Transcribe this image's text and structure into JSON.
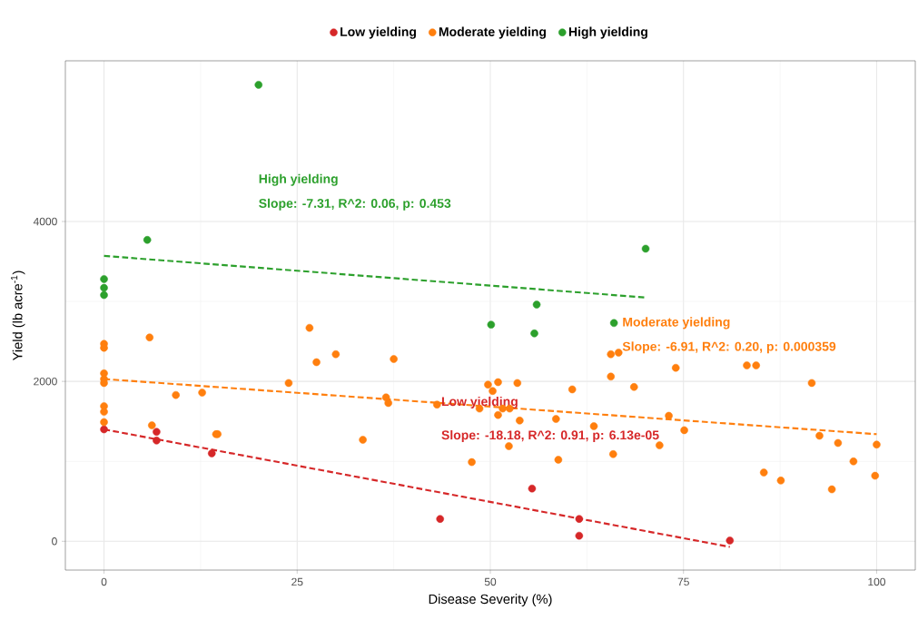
{
  "chart_data": {
    "type": "scatter",
    "xlabel": "Disease Severity (%)",
    "ylabel": "Yield (lb acre$^{-1}$)",
    "xlim": [
      -5,
      105
    ],
    "ylim": [
      -360,
      6010
    ],
    "xticks": [
      0,
      25,
      50,
      75,
      100
    ],
    "yticks": [
      0,
      2000,
      4000
    ],
    "grid": true,
    "legend": "top",
    "marker": "circle",
    "series": [
      {
        "name": "Low yielding",
        "color": "#d62728",
        "x": [
          0,
          6.8,
          6.8,
          13.95,
          43.5,
          55.4,
          61.5,
          61.5,
          81.0
        ],
        "values": [
          1400,
          1370,
          1260,
          1100,
          280,
          660,
          280,
          70,
          10
        ]
      },
      {
        "name": "Moderate yielding",
        "color": "#ff7f0e",
        "x": [
          0,
          0,
          0,
          0,
          0,
          0,
          0,
          0,
          5.9,
          6.2,
          9.3,
          12.7,
          14.5,
          14.7,
          23.9,
          26.6,
          27.5,
          30.0,
          33.5,
          37.5,
          36.5,
          36.8,
          43.1,
          47.6,
          48.6,
          49.7,
          51.0,
          50.3,
          53.5,
          51.6,
          52.5,
          51.0,
          53.8,
          52.4,
          60.6,
          58.5,
          58.8,
          65.6,
          66.6,
          65.6,
          68.6,
          65.9,
          63.4,
          74.0,
          73.1,
          71.9,
          75.1,
          83.2,
          84.4,
          91.6,
          92.6,
          95.0,
          100.0,
          97.0,
          99.8,
          85.4,
          87.6,
          94.2
        ],
        "values": [
          2470,
          2420,
          2100,
          2030,
          1980,
          1690,
          1620,
          1490,
          2550,
          1450,
          1830,
          1860,
          1340,
          1340,
          1980,
          2670,
          2240,
          2340,
          1270,
          2280,
          1800,
          1730,
          1710,
          990,
          1660,
          1960,
          1990,
          1880,
          1980,
          1660,
          1660,
          1580,
          1510,
          1190,
          1900,
          1530,
          1020,
          2340,
          2360,
          2060,
          1930,
          1090,
          1440,
          2170,
          1570,
          1200,
          1390,
          2200,
          2200,
          1980,
          1320,
          1230,
          1210,
          1000,
          820,
          860,
          760,
          650
        ]
      },
      {
        "name": "High yielding",
        "color": "#2ca02c",
        "x": [
          20.0,
          5.6,
          0,
          0,
          0,
          70.1,
          56.0,
          50.1,
          55.7,
          66.0
        ],
        "values": [
          5710,
          3770,
          3280,
          3170,
          3080,
          3660,
          2960,
          2710,
          2600,
          2730
        ]
      },
      {
        "type": "line",
        "line_style": "dashed",
        "marker": "none",
        "color": "#d62728",
        "x": [
          0,
          81
        ],
        "values": [
          1400,
          -70
        ]
      },
      {
        "type": "line",
        "line_style": "dashed",
        "marker": "none",
        "color": "#ff7f0e",
        "x": [
          0,
          100
        ],
        "values": [
          2030,
          1340
        ]
      },
      {
        "type": "line",
        "line_style": "dashed",
        "marker": "none",
        "color": "#2ca02c",
        "x": [
          0,
          70
        ],
        "values": [
          3570,
          3050
        ]
      }
    ],
    "annotations": [
      "Low yielding",
      "Slope: -18.18, R^2: 0.91, p: 6.13e-05",
      "Moderate yielding",
      "Slope: -6.91, R^2: 0.20, p: 0.000359",
      "High yielding",
      "Slope: -7.31, R^2: 0.06, p: 0.453"
    ]
  }
}
